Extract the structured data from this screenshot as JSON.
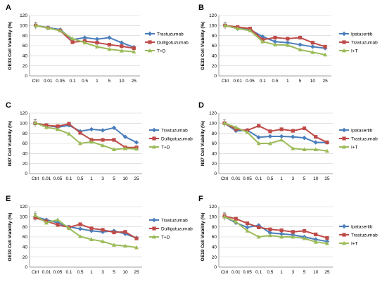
{
  "colors": {
    "blue": "#4a7ebb",
    "red": "#be4b48",
    "green": "#9bbb59"
  },
  "chart_data": [
    {
      "panel_label": "A",
      "type": "line",
      "ylabel": "OE33  Cell Viability (%)",
      "categories": [
        "Ctrl",
        "0.01",
        "0.05",
        "0.1",
        "0.5",
        "1",
        "5",
        "10",
        "25"
      ],
      "yticks": [
        0,
        20,
        40,
        60,
        80,
        100,
        120
      ],
      "ylim": [
        0,
        120
      ],
      "grid": true,
      "legend": "right",
      "series": [
        {
          "name": "Trastuzumab",
          "color": "#4a7ebb",
          "values": [
            100,
            96,
            92,
            72,
            76,
            73,
            76,
            66,
            57
          ]
        },
        {
          "name": "Dulligotuzumab",
          "color": "#be4b48",
          "values": [
            100,
            95,
            90,
            67,
            69,
            66,
            62,
            59,
            55
          ]
        },
        {
          "name": "T+D",
          "color": "#9bbb59",
          "values": [
            100,
            95,
            90,
            74,
            66,
            58,
            53,
            50,
            48
          ]
        }
      ]
    },
    {
      "panel_label": "B",
      "type": "line",
      "ylabel": "OE33  Cell Viability (%)",
      "categories": [
        "Ctrl",
        "0.01",
        "0.05",
        "0.1",
        "0.5",
        "1",
        "5",
        "10",
        "25"
      ],
      "yticks": [
        0,
        20,
        40,
        60,
        80,
        100,
        120
      ],
      "ylim": [
        0,
        120
      ],
      "grid": true,
      "legend": "right",
      "series": [
        {
          "name": "Ipatasertib",
          "color": "#4a7ebb",
          "values": [
            100,
            94,
            92,
            78,
            68,
            66,
            62,
            58,
            55
          ]
        },
        {
          "name": "Trastuzumab",
          "color": "#be4b48",
          "values": [
            100,
            97,
            94,
            72,
            76,
            74,
            76,
            66,
            58
          ]
        },
        {
          "name": "I+T",
          "color": "#9bbb59",
          "values": [
            100,
            94,
            90,
            68,
            62,
            61,
            52,
            47,
            42
          ]
        }
      ]
    },
    {
      "panel_label": "C",
      "type": "line",
      "ylabel": "N87  Cell Viability (%)",
      "categories": [
        "Ctrl",
        "0.01",
        "0.05",
        "0.1",
        "0.5",
        "1",
        "3",
        "5",
        "10",
        "25"
      ],
      "yticks": [
        0,
        20,
        40,
        60,
        80,
        100,
        120
      ],
      "ylim": [
        0,
        120
      ],
      "grid": true,
      "legend": "right",
      "series": [
        {
          "name": "Trastuzumab",
          "color": "#4a7ebb",
          "values": [
            100,
            96,
            92,
            96,
            84,
            88,
            86,
            91,
            73,
            62
          ]
        },
        {
          "name": "Dulligotuzumab",
          "color": "#be4b48",
          "values": [
            100,
            96,
            94,
            99,
            81,
            67,
            67,
            67,
            52,
            52
          ]
        },
        {
          "name": "T+D",
          "color": "#9bbb59",
          "values": [
            101,
            92,
            88,
            79,
            60,
            63,
            56,
            48,
            50,
            49
          ]
        }
      ]
    },
    {
      "panel_label": "D",
      "type": "line",
      "ylabel": "N87  Cell Viability (%)",
      "categories": [
        "Ctrl",
        "0.01",
        "0.05",
        "0.1",
        "0.5",
        "1",
        "3",
        "5",
        "10",
        "25"
      ],
      "yticks": [
        0,
        20,
        40,
        60,
        80,
        100,
        120
      ],
      "ylim": [
        0,
        120
      ],
      "grid": true,
      "legend": "right",
      "series": [
        {
          "name": "Ipatasertib",
          "color": "#4a7ebb",
          "values": [
            100,
            85,
            86,
            72,
            74,
            74,
            73,
            71,
            62,
            62
          ]
        },
        {
          "name": "Trastuzumab",
          "color": "#be4b48",
          "values": [
            100,
            88,
            86,
            95,
            84,
            88,
            85,
            90,
            73,
            62
          ]
        },
        {
          "name": "I+T",
          "color": "#9bbb59",
          "values": [
            100,
            92,
            82,
            60,
            60,
            67,
            50,
            48,
            48,
            45
          ]
        }
      ]
    },
    {
      "panel_label": "E",
      "type": "line",
      "ylabel": "OE19  Cell Viability (%)",
      "categories": [
        "Ctrl",
        "0.01",
        "0.05",
        "0.1",
        "0.5",
        "1",
        "3",
        "5",
        "10",
        "25"
      ],
      "yticks": [
        0,
        20,
        40,
        60,
        80,
        100,
        120
      ],
      "ylim": [
        0,
        120
      ],
      "grid": true,
      "legend": "right",
      "series": [
        {
          "name": "Trastuzumab",
          "color": "#4a7ebb",
          "values": [
            100,
            94,
            88,
            80,
            76,
            72,
            70,
            72,
            66,
            58
          ]
        },
        {
          "name": "Dulligotuzumab",
          "color": "#be4b48",
          "values": [
            98,
            91,
            84,
            79,
            85,
            77,
            74,
            69,
            70,
            57
          ]
        },
        {
          "name": "T+D",
          "color": "#9bbb59",
          "values": [
            103,
            88,
            94,
            77,
            61,
            55,
            51,
            44,
            42,
            39
          ]
        }
      ]
    },
    {
      "panel_label": "F",
      "type": "line",
      "ylabel": "OE19  Cell Viability (%)",
      "categories": [
        "Ctrl",
        "0.01",
        "0.05",
        "0.1",
        "0.5",
        "1",
        "3",
        "5",
        "10",
        "25"
      ],
      "yticks": [
        0,
        20,
        40,
        60,
        80,
        100,
        120
      ],
      "ylim": [
        0,
        120
      ],
      "grid": true,
      "legend": "right",
      "series": [
        {
          "name": "Ipatasertib",
          "color": "#4a7ebb",
          "values": [
            100,
            88,
            79,
            83,
            68,
            66,
            64,
            60,
            55,
            51
          ]
        },
        {
          "name": "Trastuzumab",
          "color": "#be4b48",
          "values": [
            101,
            96,
            87,
            79,
            75,
            73,
            70,
            72,
            65,
            58
          ]
        },
        {
          "name": "I+T",
          "color": "#9bbb59",
          "values": [
            100,
            90,
            72,
            60,
            63,
            60,
            60,
            57,
            50,
            47
          ]
        }
      ]
    }
  ]
}
